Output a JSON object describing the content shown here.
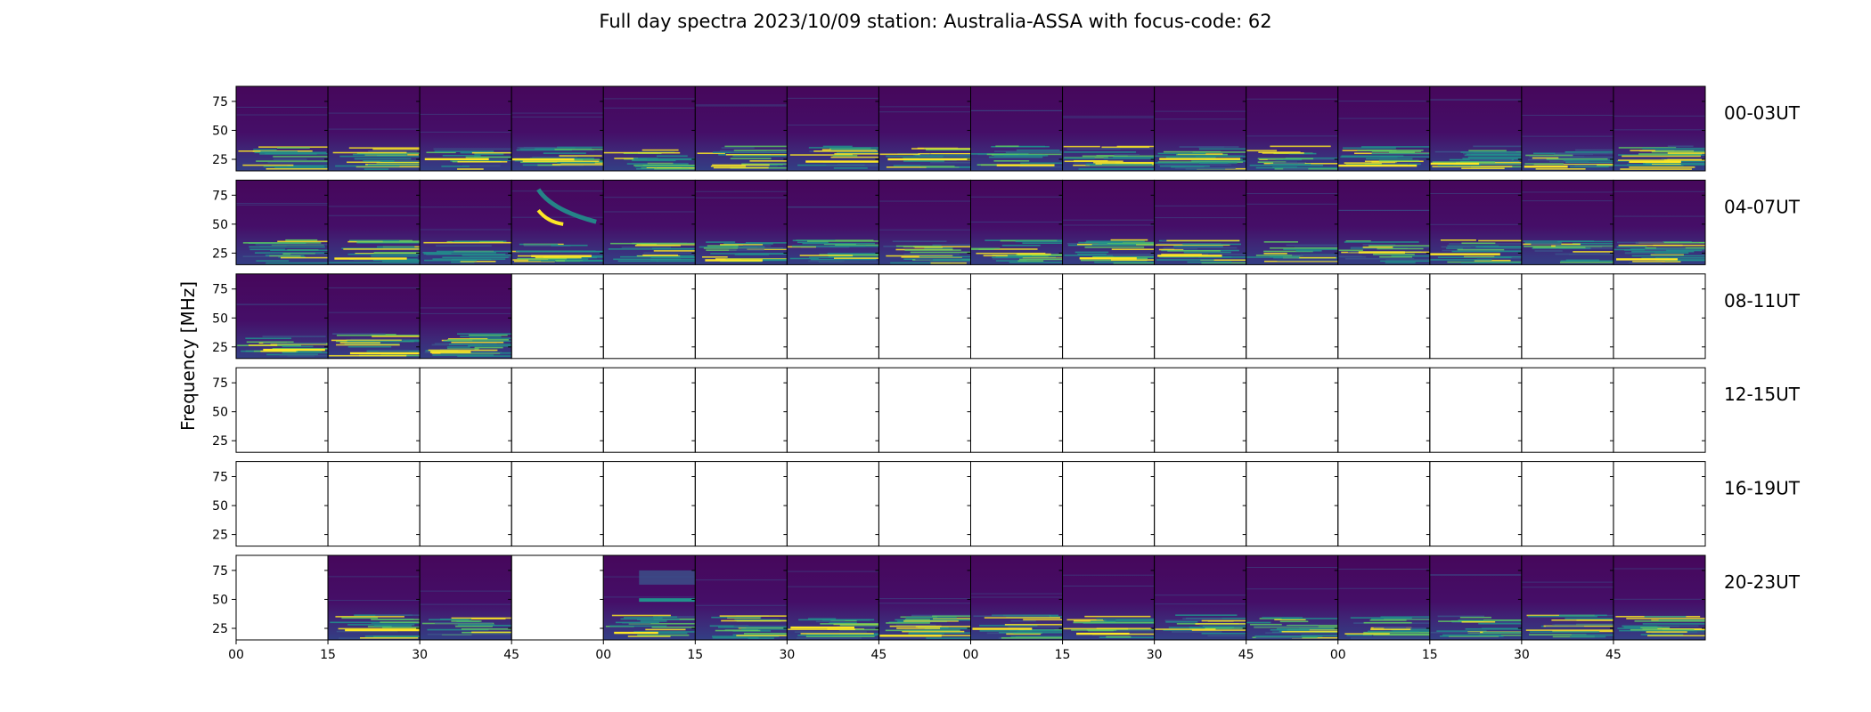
{
  "chart_data": {
    "type": "heatmap",
    "title": "Full day spectra 2023/10/09 station: Australia-ASSA with focus-code: 62",
    "ylabel": "Frequency [MHz]",
    "xlabel": "",
    "y_ticks": [
      25,
      50,
      75
    ],
    "ylim": [
      15,
      88
    ],
    "x_tick_labels": [
      "00",
      "15",
      "30",
      "45",
      "00",
      "15",
      "30",
      "45",
      "00",
      "15",
      "30",
      "45",
      "00",
      "15",
      "30",
      "45"
    ],
    "colormap": "viridis",
    "colors": {
      "background": "#440154",
      "mid": "#3b528b",
      "teal": "#21918c",
      "green": "#5ec962",
      "yellow": "#fde725"
    },
    "rows": [
      {
        "label": "00-03UT",
        "panels": [
          1,
          1,
          1,
          1,
          1,
          1,
          1,
          1,
          1,
          1,
          1,
          1,
          1,
          1,
          1,
          1
        ]
      },
      {
        "label": "04-07UT",
        "panels": [
          1,
          1,
          1,
          1,
          1,
          1,
          1,
          1,
          1,
          1,
          1,
          1,
          1,
          1,
          1,
          1
        ]
      },
      {
        "label": "08-11UT",
        "panels": [
          1,
          1,
          1,
          0,
          0,
          0,
          0,
          0,
          0,
          0,
          0,
          0,
          0,
          0,
          0,
          0
        ]
      },
      {
        "label": "12-15UT",
        "panels": [
          0,
          0,
          0,
          0,
          0,
          0,
          0,
          0,
          0,
          0,
          0,
          0,
          0,
          0,
          0,
          0
        ]
      },
      {
        "label": "16-19UT",
        "panels": [
          0,
          0,
          0,
          0,
          0,
          0,
          0,
          0,
          0,
          0,
          0,
          0,
          0,
          0,
          0,
          0
        ]
      },
      {
        "label": "20-23UT",
        "panels": [
          0,
          1,
          1,
          0,
          1,
          1,
          1,
          1,
          1,
          1,
          1,
          1,
          1,
          1,
          1,
          1
        ]
      }
    ]
  }
}
